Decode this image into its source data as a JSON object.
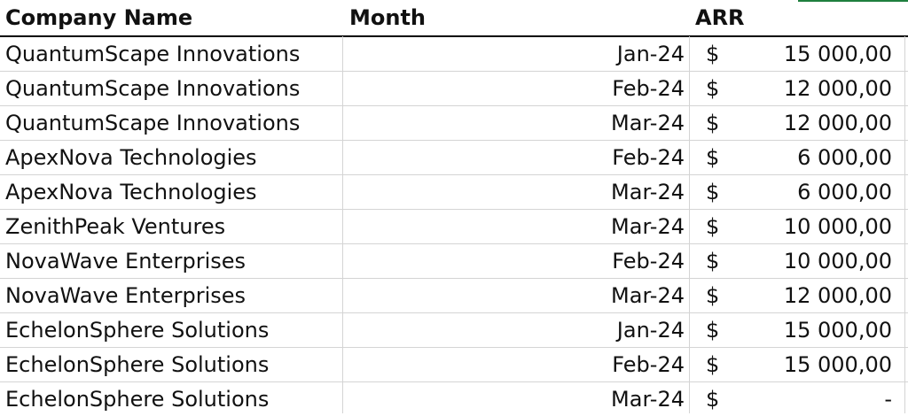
{
  "header": {
    "company": "Company Name",
    "month": "Month",
    "arr": "ARR"
  },
  "rows": [
    {
      "company": "QuantumScape Innovations",
      "month": "Jan-24",
      "currency": "$",
      "amount": "15 000,00"
    },
    {
      "company": "QuantumScape Innovations",
      "month": "Feb-24",
      "currency": "$",
      "amount": "12 000,00"
    },
    {
      "company": "QuantumScape Innovations",
      "month": "Mar-24",
      "currency": "$",
      "amount": "12 000,00"
    },
    {
      "company": "ApexNova Technologies",
      "month": "Feb-24",
      "currency": "$",
      "amount": "6 000,00"
    },
    {
      "company": "ApexNova Technologies",
      "month": "Mar-24",
      "currency": "$",
      "amount": "6 000,00"
    },
    {
      "company": "ZenithPeak Ventures",
      "month": "Mar-24",
      "currency": "$",
      "amount": "10 000,00"
    },
    {
      "company": "NovaWave Enterprises",
      "month": "Feb-24",
      "currency": "$",
      "amount": "10 000,00"
    },
    {
      "company": "NovaWave Enterprises",
      "month": "Mar-24",
      "currency": "$",
      "amount": "12 000,00"
    },
    {
      "company": "EchelonSphere Solutions",
      "month": "Jan-24",
      "currency": "$",
      "amount": "15 000,00"
    },
    {
      "company": "EchelonSphere Solutions",
      "month": "Feb-24",
      "currency": "$",
      "amount": "15 000,00"
    },
    {
      "company": "EchelonSphere Solutions",
      "month": "Mar-24",
      "currency": "$",
      "amount": "-"
    }
  ]
}
